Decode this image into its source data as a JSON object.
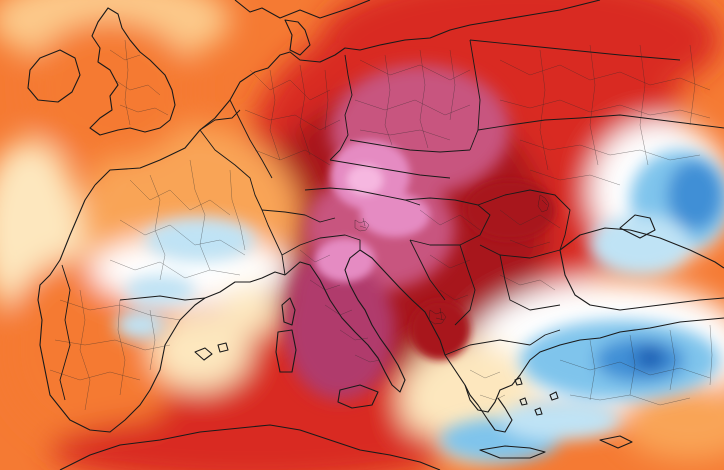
{
  "map": {
    "type": "temperature-anomaly",
    "region": "Europe",
    "palette": {
      "deep_magenta": "#b03a6c",
      "magenta": "#c8557f",
      "pink": "#e58bc2",
      "light_pink": "#f6b7e0",
      "dark_red": "#a8141c",
      "red": "#d92a23",
      "red_orange": "#ec5424",
      "orange": "#f57a33",
      "light_orange": "#f9a456",
      "peach": "#fcc98a",
      "cream": "#fde7be",
      "white": "#ffffff",
      "light_blue": "#bfe3f5",
      "sky_blue": "#7fc4ec",
      "blue": "#3f8fd6",
      "dark_blue": "#1f5fb3"
    },
    "borders_color": "#1a1a1a",
    "show_region_borders": true,
    "show_country_borders": true,
    "show_coastlines": true
  }
}
